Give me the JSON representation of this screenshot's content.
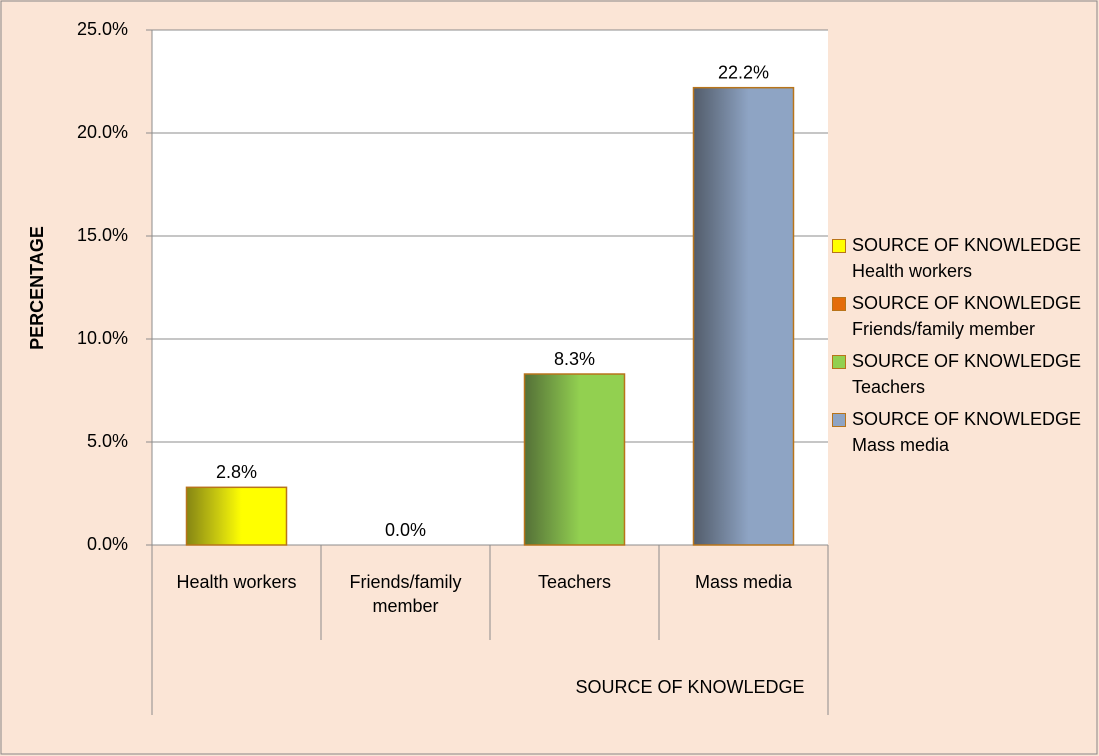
{
  "chart_data": {
    "type": "bar",
    "categories": [
      "Health workers",
      "Friends/family member",
      "Teachers",
      "Mass media"
    ],
    "series": [
      {
        "name": "SOURCE OF KNOWLEDGE Health workers",
        "color": "#ffff00",
        "values": [
          2.8,
          null,
          null,
          null
        ],
        "value_labels": [
          "2.8%",
          null,
          null,
          null
        ]
      },
      {
        "name": "SOURCE OF KNOWLEDGE Friends/family member",
        "color": "#e46c0a",
        "values": [
          null,
          0,
          null,
          null
        ],
        "value_labels": [
          null,
          "0.0%",
          null,
          null
        ]
      },
      {
        "name": "SOURCE OF KNOWLEDGE Teachers",
        "color": "#92d050",
        "values": [
          null,
          null,
          8.3,
          null
        ],
        "value_labels": [
          null,
          null,
          "8.3%",
          null
        ]
      },
      {
        "name": "SOURCE OF KNOWLEDGE Mass media",
        "color": "#8ea4c4",
        "values": [
          null,
          null,
          null,
          22.2
        ],
        "value_labels": [
          null,
          null,
          null,
          "22.2%"
        ]
      }
    ],
    "x_label": "SOURCE OF KNOWLEDGE",
    "y_label": "PERCENTAGE",
    "ylim": [
      0,
      25
    ],
    "yticks": [
      {
        "value": 0,
        "label": "0.0%"
      },
      {
        "value": 5,
        "label": "5.0%"
      },
      {
        "value": 10,
        "label": "10.0%"
      },
      {
        "value": 15,
        "label": "15.0%"
      },
      {
        "value": 20,
        "label": "20.0%"
      },
      {
        "value": 25,
        "label": "25.0%"
      }
    ],
    "grid": true,
    "legend": "right"
  }
}
